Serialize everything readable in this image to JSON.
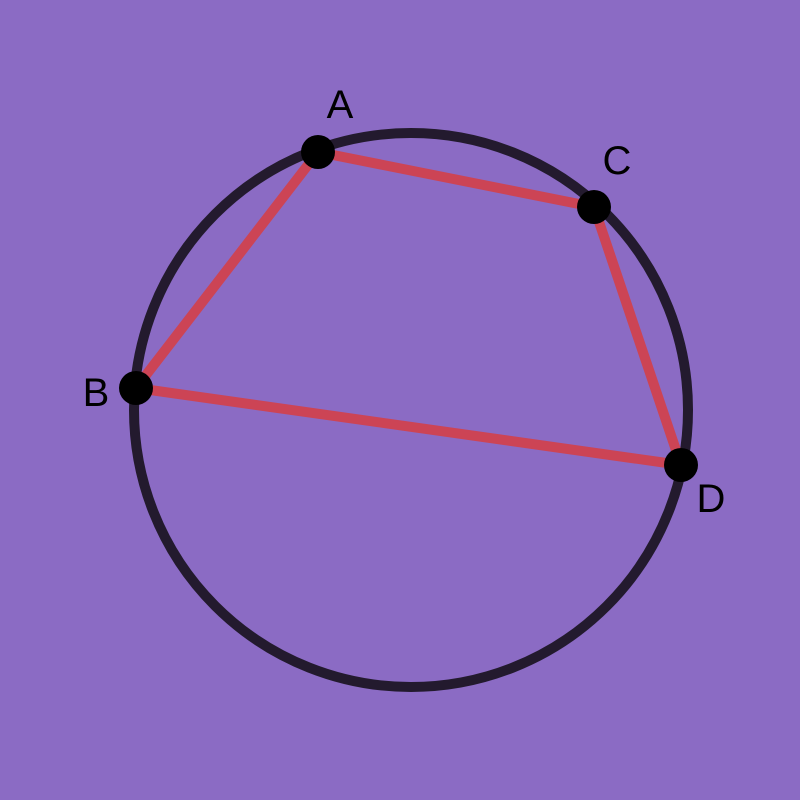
{
  "colors": {
    "background": "#8b6bc4",
    "circle_stroke": "#231a2e",
    "edge_stroke": "#cc4455",
    "point_fill": "#000000",
    "label_text": "#000000"
  },
  "diagram": {
    "shape": "cyclic-quadrilateral-inscribed-in-circle",
    "points": [
      {
        "id": "A",
        "label": "A"
      },
      {
        "id": "B",
        "label": "B"
      },
      {
        "id": "C",
        "label": "C"
      },
      {
        "id": "D",
        "label": "D"
      }
    ],
    "edges": [
      {
        "from": "A",
        "to": "C"
      },
      {
        "from": "C",
        "to": "D"
      },
      {
        "from": "D",
        "to": "B"
      },
      {
        "from": "B",
        "to": "A"
      }
    ]
  }
}
